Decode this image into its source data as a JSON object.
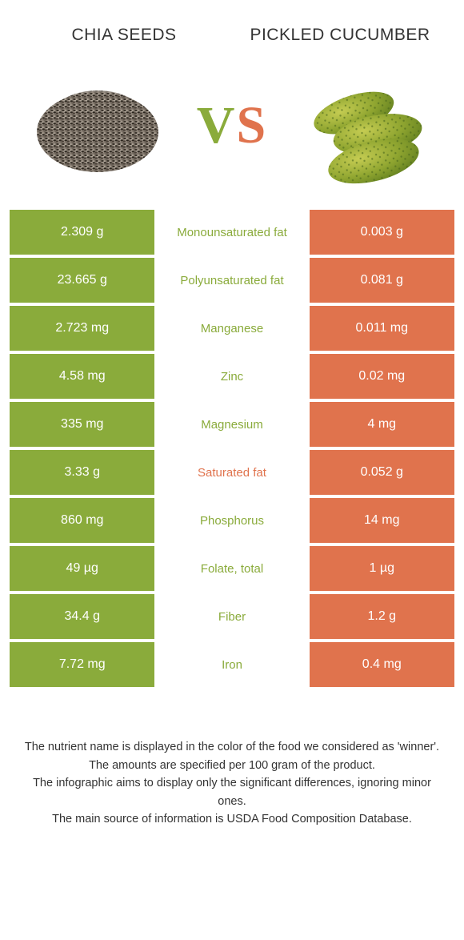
{
  "colors": {
    "food1": "#8aab3b",
    "food2": "#e0734d",
    "vs_v": "#8aab3b",
    "vs_s": "#e0734d"
  },
  "food1": {
    "title": "CHIA SEEDS"
  },
  "food2": {
    "title": "PICKLED CUCUMBER"
  },
  "rows": [
    {
      "left": "2.309 g",
      "label": "Monounsaturated fat",
      "right": "0.003 g",
      "winner": "food1"
    },
    {
      "left": "23.665 g",
      "label": "Polyunsaturated fat",
      "right": "0.081 g",
      "winner": "food1"
    },
    {
      "left": "2.723 mg",
      "label": "Manganese",
      "right": "0.011 mg",
      "winner": "food1"
    },
    {
      "left": "4.58 mg",
      "label": "Zinc",
      "right": "0.02 mg",
      "winner": "food1"
    },
    {
      "left": "335 mg",
      "label": "Magnesium",
      "right": "4 mg",
      "winner": "food1"
    },
    {
      "left": "3.33 g",
      "label": "Saturated fat",
      "right": "0.052 g",
      "winner": "food2"
    },
    {
      "left": "860 mg",
      "label": "Phosphorus",
      "right": "14 mg",
      "winner": "food1"
    },
    {
      "left": "49 µg",
      "label": "Folate, total",
      "right": "1 µg",
      "winner": "food1"
    },
    {
      "left": "34.4 g",
      "label": "Fiber",
      "right": "1.2 g",
      "winner": "food1"
    },
    {
      "left": "7.72 mg",
      "label": "Iron",
      "right": "0.4 mg",
      "winner": "food1"
    }
  ],
  "footer": {
    "line1": "The nutrient name is displayed in the color of the food we considered as 'winner'.",
    "line2": "The amounts are specified per 100 gram of the product.",
    "line3": "The infographic aims to display only the significant differences, ignoring minor ones.",
    "line4": "The main source of information is USDA Food Composition Database."
  }
}
